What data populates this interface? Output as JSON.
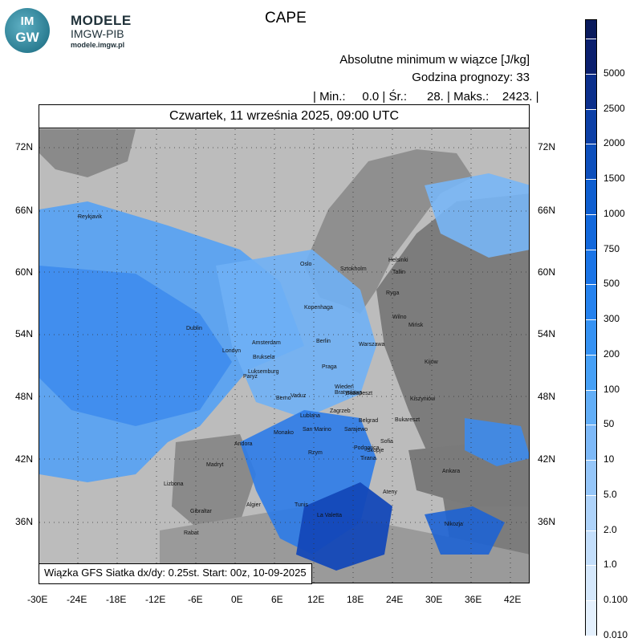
{
  "logo": {
    "badge_line1": "IM",
    "badge_line2": "GW",
    "name": "MODELE",
    "org": "IMGW-PIB",
    "url": "modele.imgw.pl"
  },
  "title": "CAPE",
  "header": {
    "line1": "Absolutne minimum w wiązce [J/kg]",
    "line2": "Godzina prognozy: 33",
    "stats": "| Min.:     0.0 | Śr.:      28. | Maks.:    2423. |"
  },
  "map": {
    "date": "Czwartek, 11 września 2025, 09:00 UTC",
    "attribution": "Wiązka GFS Siatka dx/dy: 0.25st. Start: 00z, 10-09-2025",
    "lat_labels": [
      "72N",
      "66N",
      "60N",
      "54N",
      "48N",
      "42N",
      "36N"
    ],
    "lon_labels": [
      "-30E",
      "-24E",
      "-18E",
      "-12E",
      "-6E",
      "0E",
      "6E",
      "12E",
      "18E",
      "24E",
      "30E",
      "36E",
      "42E"
    ],
    "cities": [
      "Reykjavik",
      "Oslo",
      "Sztokholm",
      "Helsinki",
      "Tallin",
      "Ryga",
      "Kopenhaga",
      "Wilno",
      "Mińsk",
      "Dublin",
      "Londyn",
      "Amsterdam",
      "Berlin",
      "Warszawa",
      "Bruksela",
      "Kijów",
      "Luksemburg",
      "Praga",
      "Paryż",
      "Wiedeń",
      "Bratysława",
      "Berno",
      "Vaduz",
      "Budapeszt",
      "Kiszyniów",
      "Zagrzeb",
      "Lublana",
      "Belgrad",
      "Bukareszt",
      "Monako",
      "San Marino",
      "Sarajewo",
      "Andora",
      "Sofia",
      "Podgorica",
      "Skopje",
      "Rzym",
      "Tirana",
      "Madryt",
      "Ankara",
      "Lizbona",
      "Ateny",
      "Algier",
      "Tunis",
      "La Valetta",
      "Gibraltar",
      "Nikozja",
      "Rabat"
    ]
  },
  "colorbar": {
    "labels": [
      "5000",
      "2500",
      "2000",
      "1500",
      "1000",
      "750",
      "500",
      "300",
      "200",
      "100",
      "50",
      "10",
      "5.0",
      "2.0",
      "1.0",
      "0.100",
      "0.010"
    ],
    "colors": [
      "#0a1f6e",
      "#0b2f8c",
      "#0c3fa6",
      "#0d4fbc",
      "#0e5ed0",
      "#1268dc",
      "#1a74e6",
      "#2582ee",
      "#3592f3",
      "#46a0f6",
      "#62aef7",
      "#7db9f8",
      "#95c6f9",
      "#aed3fa",
      "#c3defb",
      "#d5e8fc",
      "#e4f0fd"
    ]
  }
}
